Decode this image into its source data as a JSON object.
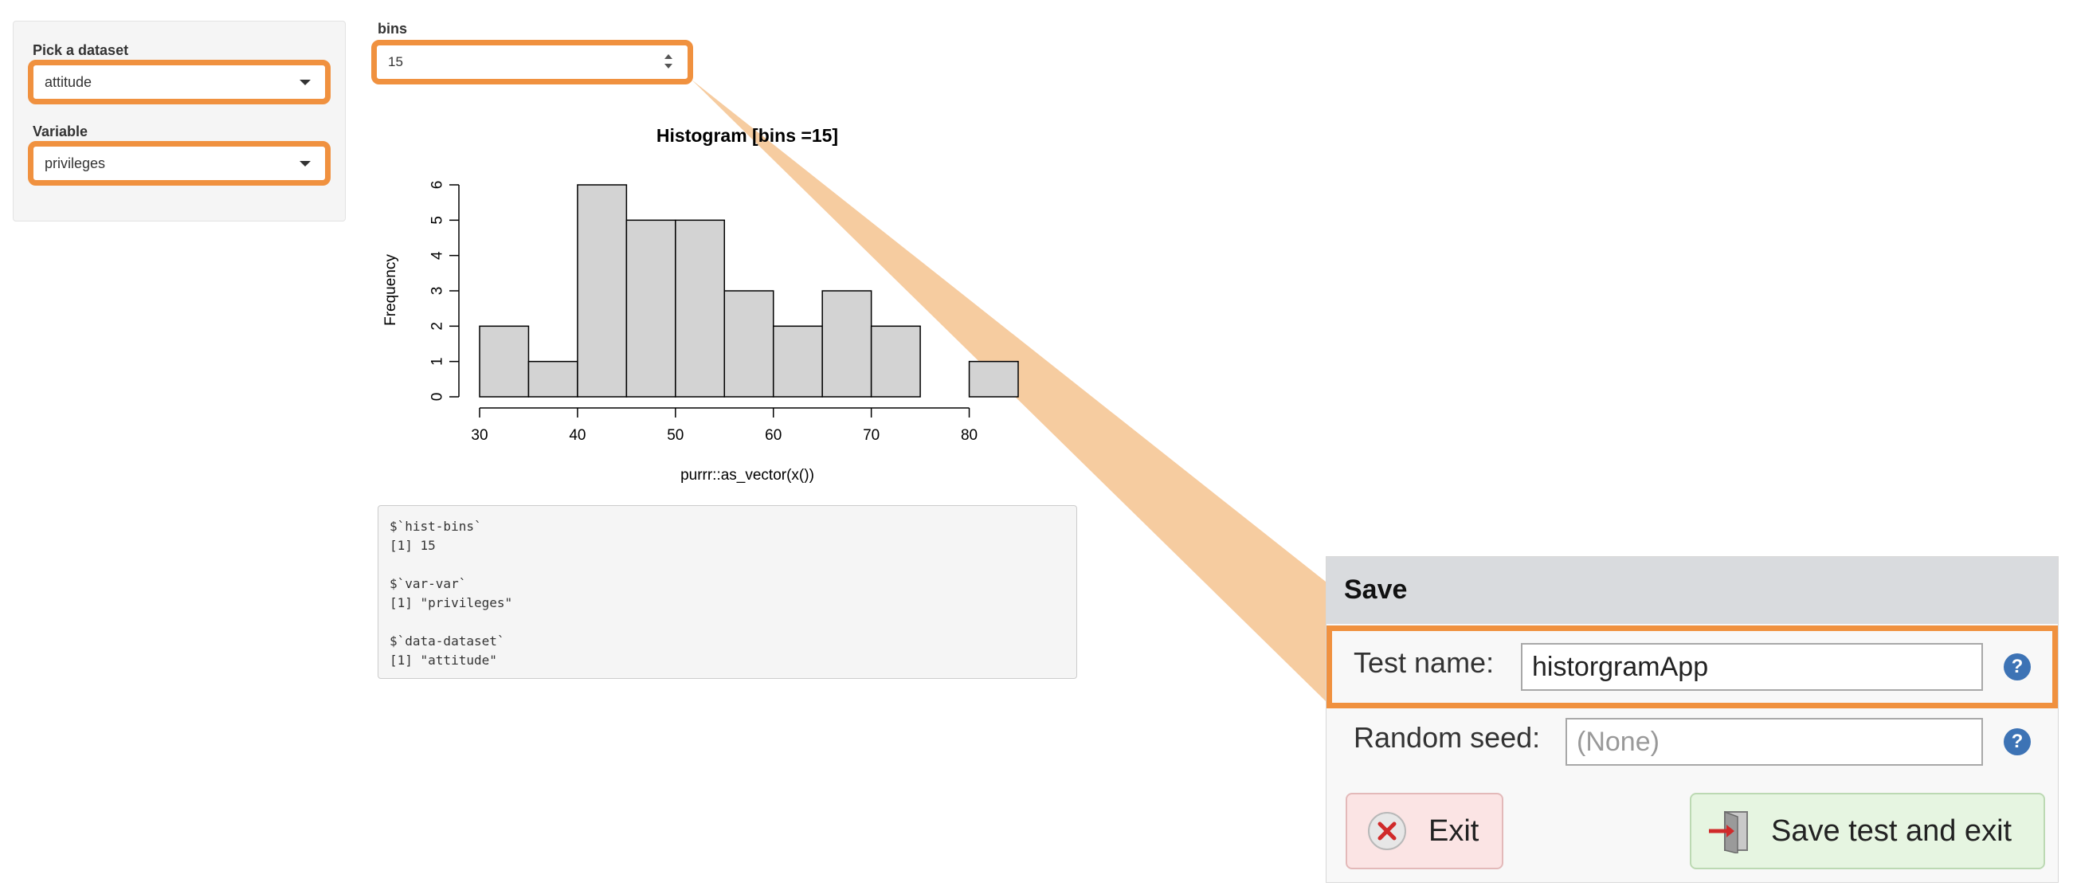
{
  "sidebar": {
    "dataset_label": "Pick a dataset",
    "dataset_value": "attitude",
    "variable_label": "Variable",
    "variable_value": "privileges"
  },
  "bins": {
    "label": "bins",
    "value": "15"
  },
  "chart_data": {
    "type": "bar",
    "title": "Histogram [bins =15]",
    "xlabel": "purrr::as_vector(x())",
    "ylabel": "Frequency",
    "bin_edges": [
      30,
      35,
      40,
      45,
      50,
      55,
      60,
      65,
      70,
      75,
      80,
      85
    ],
    "values": [
      2,
      1,
      6,
      5,
      5,
      3,
      2,
      3,
      2,
      0,
      1
    ],
    "xticks": [
      30,
      40,
      50,
      60,
      70,
      80
    ],
    "yticks": [
      0,
      1,
      2,
      3,
      4,
      5,
      6
    ],
    "xlim": [
      30,
      85
    ],
    "ylim": [
      0,
      6
    ]
  },
  "output": {
    "lines": [
      "$`hist-bins`",
      "[1] 15",
      "",
      "$`var-var`",
      "[1] \"privileges\"",
      "",
      "$`data-dataset`",
      "[1] \"attitude\""
    ]
  },
  "save_panel": {
    "title": "Save",
    "test_name_label": "Test name:",
    "test_name_value": "historgramApp",
    "random_seed_label": "Random seed:",
    "random_seed_placeholder": "(None)",
    "help_glyph": "?",
    "exit_label": "Exit",
    "save_label": "Save test and exit",
    "colors": {
      "highlight": "#f0913f",
      "help": "#3d73b5",
      "exit_bg": "#fbe4e4",
      "save_bg": "#e6f5e1"
    }
  }
}
